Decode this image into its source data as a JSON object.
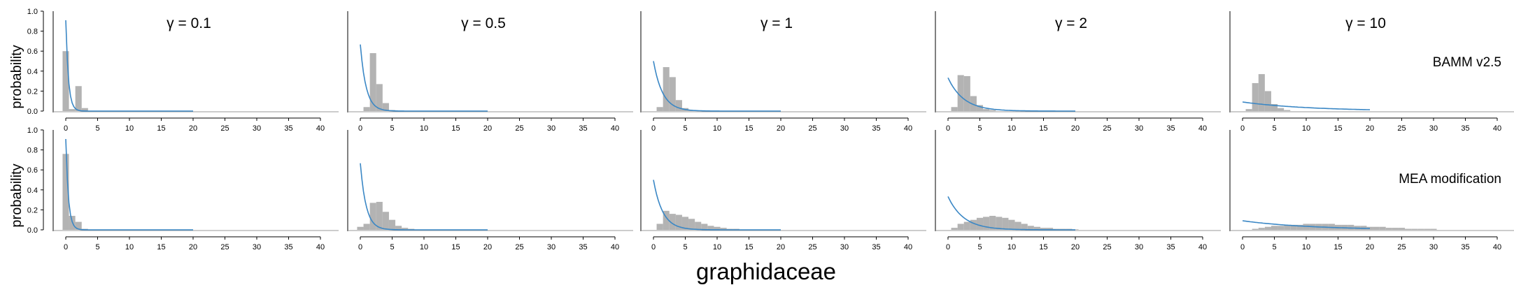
{
  "figure": {
    "xlabel": "graphidaceae",
    "row_labels": [
      "BAMM v2.5",
      "MEA modification"
    ],
    "col_titles": [
      "γ = 0.1",
      "γ = 0.5",
      "γ = 1",
      "γ = 2",
      "γ = 10"
    ],
    "ylabel": "probability",
    "colors": {
      "bars": "#b3b3b3",
      "line": "#3a87c5",
      "axis": "#000000",
      "baseline": "#9a9a9a"
    }
  },
  "chart_data": {
    "type": "bar",
    "layout": "2 rows x 5 columns small multiples",
    "xlabel": "graphidaceae",
    "ylabel": "probability",
    "xlim": [
      -1,
      40
    ],
    "ylim": [
      0,
      1.0
    ],
    "x_ticks": [
      0,
      5,
      10,
      15,
      20,
      25,
      30,
      35,
      40
    ],
    "y_ticks": [
      0.0,
      0.2,
      0.4,
      0.6,
      0.8,
      1.0
    ],
    "gamma": [
      0.1,
      0.5,
      1,
      2,
      10
    ],
    "prior_curve_x_range": [
      0,
      20
    ],
    "rows": [
      {
        "label": "BAMM v2.5",
        "panels": [
          {
            "title": "γ = 0.1",
            "bins": [
              [
                0,
                0.6
              ],
              [
                1,
                0.02
              ],
              [
                2,
                0.25
              ],
              [
                3,
                0.03
              ]
            ]
          },
          {
            "title": "γ = 0.5",
            "bins": [
              [
                1,
                0.04
              ],
              [
                2,
                0.58
              ],
              [
                3,
                0.27
              ],
              [
                4,
                0.08
              ],
              [
                5,
                0.01
              ]
            ]
          },
          {
            "title": "γ = 1",
            "bins": [
              [
                1,
                0.04
              ],
              [
                2,
                0.44
              ],
              [
                3,
                0.34
              ],
              [
                4,
                0.11
              ],
              [
                5,
                0.03
              ],
              [
                6,
                0.01
              ]
            ]
          },
          {
            "title": "γ = 2",
            "bins": [
              [
                1,
                0.04
              ],
              [
                2,
                0.36
              ],
              [
                3,
                0.35
              ],
              [
                4,
                0.15
              ],
              [
                5,
                0.06
              ],
              [
                6,
                0.02
              ],
              [
                7,
                0.01
              ]
            ]
          },
          {
            "title": "γ = 10",
            "bins": [
              [
                1,
                0.02
              ],
              [
                2,
                0.28
              ],
              [
                3,
                0.37
              ],
              [
                4,
                0.2
              ],
              [
                5,
                0.07
              ],
              [
                6,
                0.03
              ],
              [
                7,
                0.01
              ]
            ]
          }
        ]
      },
      {
        "label": "MEA modification",
        "panels": [
          {
            "title": "γ = 0.1",
            "bins": [
              [
                0,
                0.76
              ],
              [
                1,
                0.14
              ],
              [
                2,
                0.08
              ],
              [
                3,
                0.01
              ]
            ]
          },
          {
            "title": "γ = 0.5",
            "bins": [
              [
                0,
                0.03
              ],
              [
                1,
                0.06
              ],
              [
                2,
                0.27
              ],
              [
                3,
                0.28
              ],
              [
                4,
                0.18
              ],
              [
                5,
                0.1
              ],
              [
                6,
                0.04
              ],
              [
                7,
                0.02
              ],
              [
                8,
                0.01
              ]
            ]
          },
          {
            "title": "γ = 1",
            "bins": [
              [
                1,
                0.06
              ],
              [
                2,
                0.19
              ],
              [
                3,
                0.16
              ],
              [
                4,
                0.15
              ],
              [
                5,
                0.13
              ],
              [
                6,
                0.11
              ],
              [
                7,
                0.08
              ],
              [
                8,
                0.06
              ],
              [
                9,
                0.04
              ],
              [
                10,
                0.03
              ],
              [
                11,
                0.02
              ],
              [
                12,
                0.01
              ],
              [
                13,
                0.01
              ]
            ]
          },
          {
            "title": "γ = 2",
            "bins": [
              [
                1,
                0.02
              ],
              [
                2,
                0.06
              ],
              [
                3,
                0.08
              ],
              [
                4,
                0.1
              ],
              [
                5,
                0.12
              ],
              [
                6,
                0.13
              ],
              [
                7,
                0.14
              ],
              [
                8,
                0.13
              ],
              [
                9,
                0.12
              ],
              [
                10,
                0.1
              ],
              [
                11,
                0.08
              ],
              [
                12,
                0.06
              ],
              [
                13,
                0.04
              ],
              [
                14,
                0.03
              ],
              [
                15,
                0.02
              ],
              [
                16,
                0.02
              ],
              [
                17,
                0.01
              ],
              [
                18,
                0.01
              ],
              [
                19,
                0.01
              ],
              [
                20,
                0.005
              ]
            ]
          },
          {
            "title": "γ = 10",
            "bins": [
              [
                2,
                0.01
              ],
              [
                3,
                0.02
              ],
              [
                4,
                0.03
              ],
              [
                5,
                0.04
              ],
              [
                6,
                0.04
              ],
              [
                7,
                0.05
              ],
              [
                8,
                0.05
              ],
              [
                9,
                0.05
              ],
              [
                10,
                0.06
              ],
              [
                11,
                0.06
              ],
              [
                12,
                0.06
              ],
              [
                13,
                0.06
              ],
              [
                14,
                0.06
              ],
              [
                15,
                0.05
              ],
              [
                16,
                0.05
              ],
              [
                17,
                0.05
              ],
              [
                18,
                0.04
              ],
              [
                19,
                0.04
              ],
              [
                20,
                0.03
              ],
              [
                21,
                0.03
              ],
              [
                22,
                0.03
              ],
              [
                23,
                0.02
              ],
              [
                24,
                0.02
              ],
              [
                25,
                0.02
              ],
              [
                26,
                0.01
              ],
              [
                27,
                0.01
              ],
              [
                28,
                0.01
              ],
              [
                29,
                0.01
              ],
              [
                30,
                0.01
              ]
            ]
          }
        ]
      }
    ]
  }
}
